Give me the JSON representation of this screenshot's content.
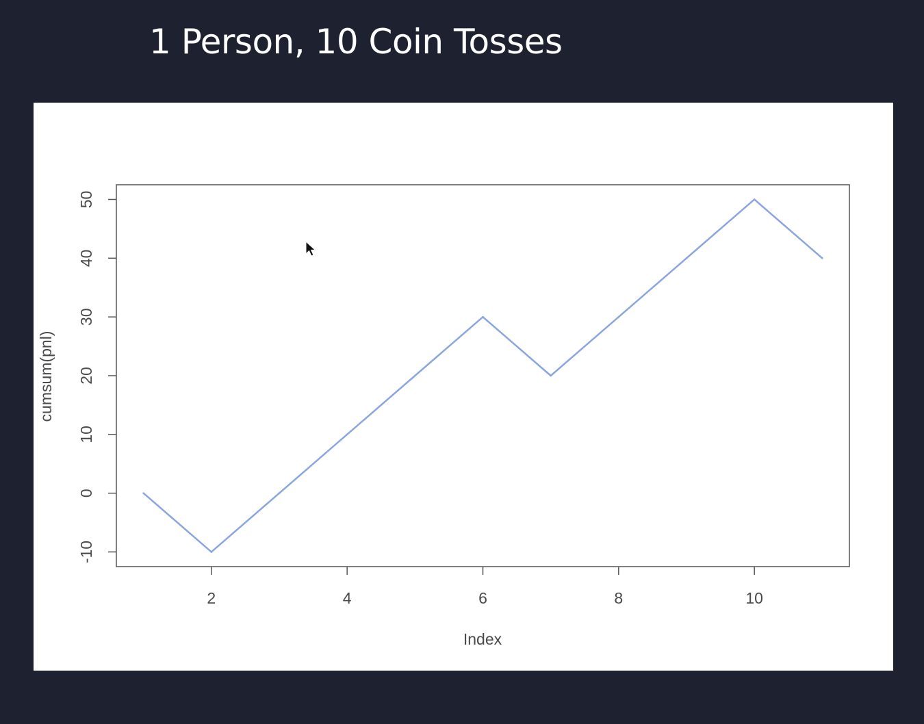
{
  "slide": {
    "title": "1 Person, 10 Coin Tosses",
    "background_color": "#1e2130",
    "title_color": "#ffffff"
  },
  "chart_data": {
    "type": "line",
    "title": "",
    "xlabel": "Index",
    "ylabel": "cumsum(pnl)",
    "x": [
      1,
      2,
      3,
      4,
      5,
      6,
      7,
      8,
      9,
      10,
      11
    ],
    "series": [
      {
        "values": [
          0,
          -10,
          0,
          10,
          20,
          30,
          20,
          30,
          40,
          50,
          40
        ],
        "color": "#8aa6df"
      }
    ],
    "xlim": [
      0.6,
      11.4
    ],
    "ylim": [
      -12.5,
      52.5
    ],
    "xticks": [
      2,
      4,
      6,
      8,
      10
    ],
    "xtick_labels": [
      "2",
      "4",
      "6",
      "8",
      "10"
    ],
    "yticks": [
      -10,
      0,
      10,
      20,
      30,
      40,
      50
    ],
    "ytick_labels": [
      "-10",
      "0",
      "10",
      "20",
      "30",
      "40",
      "50"
    ],
    "grid": false,
    "legend": "none",
    "box": true
  },
  "cursor": {
    "icon": "mouse-pointer-icon"
  }
}
